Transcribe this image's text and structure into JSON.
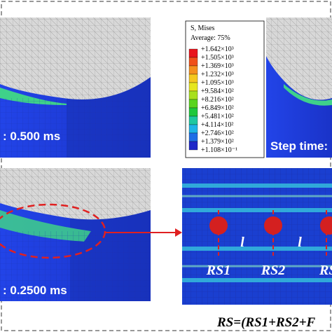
{
  "legend": {
    "title": "S, Mises",
    "subtitle": "Average: 75%",
    "values": [
      "+1.642×10³",
      "+1.505×10³",
      "+1.369×10³",
      "+1.232×10³",
      "+1.095×10³",
      "+9.584×10²",
      "+8.216×10²",
      "+6.849×10²",
      "+5.481×10²",
      "+4.114×10²",
      "+2.746×10²",
      "+1.379×10²",
      "+1.108×10⁻¹"
    ]
  },
  "panels": [
    {
      "label": ": 0.500 ms"
    },
    {
      "label": "Step time: "
    },
    {
      "label": ": 0.2500 ms"
    }
  ],
  "detail": {
    "markers": [
      "RS1",
      "RS2",
      "RS"
    ],
    "spacing": [
      "l",
      "l"
    ],
    "formula": "RS=(RS1+RS2+F"
  }
}
